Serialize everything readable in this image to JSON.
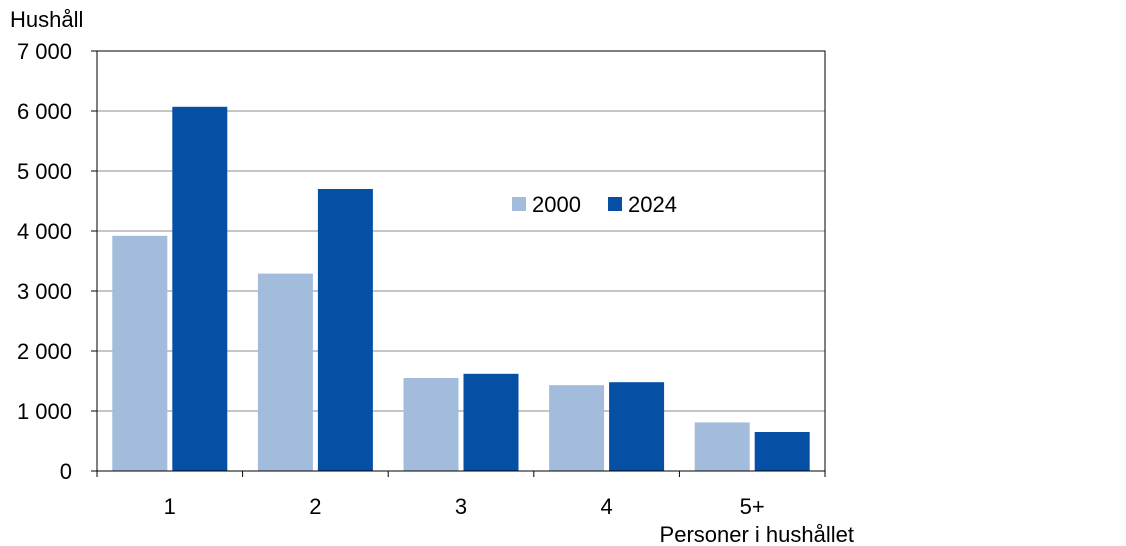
{
  "chart_data": {
    "type": "bar",
    "title": "",
    "ylabel": "Hushåll",
    "xlabel": "Personer i hushållet",
    "categories": [
      "1",
      "2",
      "3",
      "4",
      "5+"
    ],
    "series": [
      {
        "name": "2000",
        "color": "#a3bcdc",
        "values": [
          3920,
          3290,
          1550,
          1430,
          810
        ]
      },
      {
        "name": "2024",
        "color": "#0550a5",
        "values": [
          6070,
          4700,
          1620,
          1480,
          650
        ]
      }
    ],
    "ylim": [
      0,
      7000
    ],
    "yticks": [
      0,
      1000,
      2000,
      3000,
      4000,
      5000,
      6000,
      7000
    ],
    "ytick_labels": [
      "0",
      "1 000",
      "2 000",
      "3 000",
      "4 000",
      "5 000",
      "6 000",
      "7 000"
    ],
    "grid": true,
    "legend_position": "upper-right-inside",
    "colors": {
      "gridline": "#8c8c8c",
      "frame": "#000000"
    }
  }
}
